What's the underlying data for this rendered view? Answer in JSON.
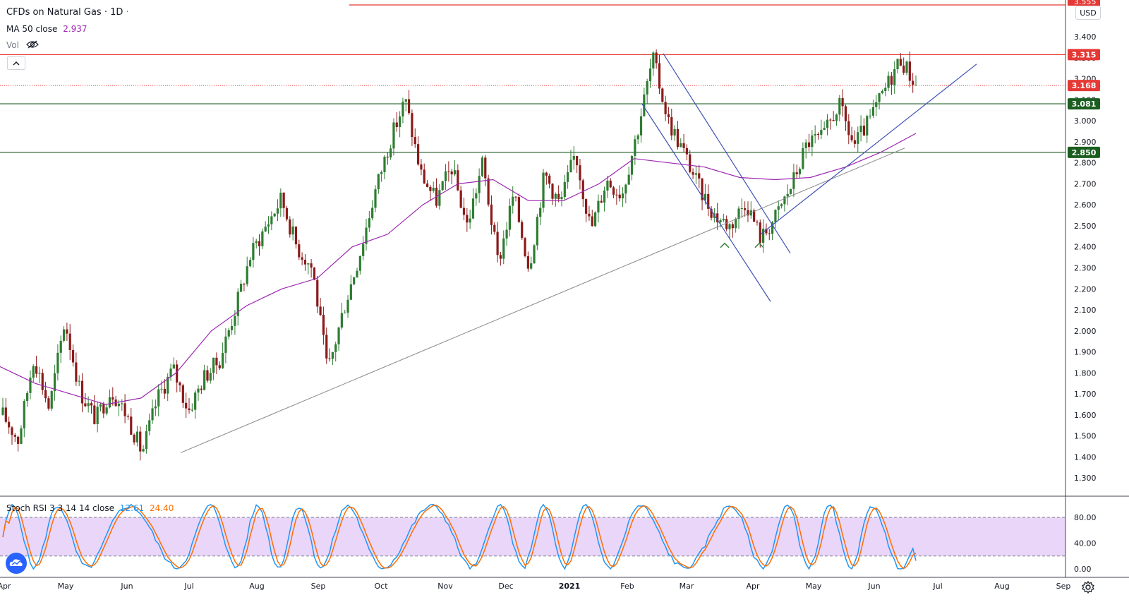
{
  "header": {
    "symbol": "CFDs on Natural Gas",
    "sep1": "·",
    "interval": "1D",
    "sep2": "·",
    "ma_label": "MA 50 close",
    "ma_value": "2.937",
    "vol_label": "Vol",
    "eye_icon": "eye-crossed-icon",
    "collapse_icon": "chevron-up-icon"
  },
  "currency": "USD",
  "colors": {
    "up": "#26a69a",
    "up_body": "#2e7d32",
    "down": "#8b1a1a",
    "ma": "#9c27b0",
    "red_line": "#e53935",
    "green_line": "#1b5e20",
    "trend_blue": "#3f51b5",
    "trend_gray": "#888888",
    "stoch_k": "#2196f3",
    "stoch_d": "#ff6d00",
    "stoch_band": "#e1c8f7"
  },
  "price_axis": {
    "labels": [
      "3.400",
      "3.300",
      "3.200",
      "3.100",
      "3.000",
      "2.900",
      "2.800",
      "2.700",
      "2.600",
      "2.500",
      "2.400",
      "2.300",
      "2.200",
      "2.100",
      "2.000",
      "1.900",
      "1.800",
      "1.700",
      "1.600",
      "1.500",
      "1.400",
      "1.300"
    ],
    "top_tag": "3.555"
  },
  "price_tags": [
    {
      "value": "3.315",
      "color": "#e53935"
    },
    {
      "value": "3.168",
      "color": "#e53935"
    },
    {
      "value": "3.081",
      "color": "#1b5e20"
    },
    {
      "value": "2.850",
      "color": "#1b5e20"
    }
  ],
  "time_axis": [
    "Apr",
    "May",
    "Jun",
    "Jul",
    "Aug",
    "Sep",
    "Oct",
    "Nov",
    "Dec",
    "2021",
    "Feb",
    "Mar",
    "Apr",
    "May",
    "Jun",
    "Jul",
    "Aug",
    "Sep"
  ],
  "stoch": {
    "label": "Stoch RSI 3 3 14 14 close",
    "k_value": "12.61",
    "d_value": "24.40",
    "axis_labels": [
      "80.00",
      "40.00",
      "0.00"
    ]
  },
  "chart_data": {
    "type": "candlestick",
    "title": "CFDs on Natural Gas · 1D",
    "ylim": [
      1.25,
      3.56
    ],
    "series": [
      {
        "name": "CFDs on Natural Gas",
        "kind": "ohlc_path",
        "points": [
          [
            "Apr",
            1.6
          ],
          [
            "Apr",
            1.48
          ],
          [
            "May",
            1.88
          ],
          [
            "May",
            1.63
          ],
          [
            "May",
            2.05
          ],
          [
            "May",
            1.71
          ],
          [
            "Jun",
            1.58
          ],
          [
            "Jun",
            1.72
          ],
          [
            "Jun",
            1.6
          ],
          [
            "Jun",
            1.42
          ],
          [
            "Jul",
            1.68
          ],
          [
            "Jul",
            1.82
          ],
          [
            "Jul",
            1.62
          ],
          [
            "Aug",
            1.78
          ],
          [
            "Aug",
            1.86
          ],
          [
            "Aug",
            2.1
          ],
          [
            "Aug",
            2.36
          ],
          [
            "Sep",
            2.5
          ],
          [
            "Sep",
            2.63
          ],
          [
            "Sep",
            2.4
          ],
          [
            "Sep",
            2.3
          ],
          [
            "Sep",
            1.8
          ],
          [
            "Oct",
            2.1
          ],
          [
            "Oct",
            2.35
          ],
          [
            "Oct",
            2.65
          ],
          [
            "Oct",
            2.9
          ],
          [
            "Nov",
            3.1
          ],
          [
            "Nov",
            2.75
          ],
          [
            "Nov",
            2.62
          ],
          [
            "Nov",
            2.78
          ],
          [
            "Nov",
            2.5
          ],
          [
            "Dec",
            2.8
          ],
          [
            "Dec",
            2.32
          ],
          [
            "Dec",
            2.65
          ],
          [
            "Dec",
            2.3
          ],
          [
            "Dec",
            2.75
          ],
          [
            "Jan",
            2.6
          ],
          [
            "Jan",
            2.85
          ],
          [
            "Jan",
            2.48
          ],
          [
            "Jan",
            2.72
          ],
          [
            "Feb",
            2.65
          ],
          [
            "Feb",
            2.95
          ],
          [
            "Feb",
            3.3
          ],
          [
            "Feb",
            3.0
          ],
          [
            "Mar",
            2.85
          ],
          [
            "Mar",
            2.68
          ],
          [
            "Mar",
            2.55
          ],
          [
            "Mar",
            2.5
          ],
          [
            "Apr",
            2.62
          ],
          [
            "Apr",
            2.44
          ],
          [
            "Apr",
            2.55
          ],
          [
            "Apr",
            2.7
          ],
          [
            "May",
            2.9
          ],
          [
            "May",
            2.92
          ],
          [
            "May",
            3.08
          ],
          [
            "May",
            2.88
          ],
          [
            "Jun",
            3.0
          ],
          [
            "Jun",
            3.15
          ],
          [
            "Jun",
            3.3
          ],
          [
            "Jun",
            3.17
          ]
        ]
      },
      {
        "name": "MA 50 close",
        "kind": "line",
        "points": [
          [
            "Apr",
            1.83
          ],
          [
            "May",
            1.75
          ],
          [
            "Jun",
            1.7
          ],
          [
            "Jul",
            1.65
          ],
          [
            "Aug",
            1.68
          ],
          [
            "Aug",
            1.8
          ],
          [
            "Sep",
            2.0
          ],
          [
            "Sep",
            2.12
          ],
          [
            "Oct",
            2.2
          ],
          [
            "Oct",
            2.25
          ],
          [
            "Nov",
            2.4
          ],
          [
            "Nov",
            2.46
          ],
          [
            "Dec",
            2.6
          ],
          [
            "Dec",
            2.7
          ],
          [
            "Jan",
            2.72
          ],
          [
            "Jan",
            2.62
          ],
          [
            "Feb",
            2.62
          ],
          [
            "Feb",
            2.7
          ],
          [
            "Mar",
            2.82
          ],
          [
            "Mar",
            2.8
          ],
          [
            "Apr",
            2.78
          ],
          [
            "Apr",
            2.73
          ],
          [
            "May",
            2.72
          ],
          [
            "May",
            2.73
          ],
          [
            "Jun",
            2.78
          ],
          [
            "Jun",
            2.85
          ],
          [
            "Jun",
            2.94
          ]
        ]
      }
    ],
    "horizontal_lines": [
      3.555,
      3.315,
      3.168,
      3.081,
      2.85
    ],
    "trendlines": [
      {
        "from": [
          "Jun",
          1.42
        ],
        "to": [
          "Jun",
          2.87
        ],
        "color": "gray"
      },
      {
        "from": [
          "Feb",
          3.32
        ],
        "to": [
          "Apr",
          2.37
        ],
        "color": "blue"
      },
      {
        "from": [
          "Feb",
          3.08
        ],
        "to": [
          "Apr",
          2.14
        ],
        "color": "blue"
      },
      {
        "from": [
          "Apr",
          2.46
        ],
        "to": [
          "Jul",
          3.27
        ],
        "color": "blue"
      }
    ],
    "stoch_rsi": {
      "k": 12.61,
      "d": 24.4,
      "bands": [
        80,
        20
      ],
      "ylim": [
        0,
        100
      ]
    }
  }
}
